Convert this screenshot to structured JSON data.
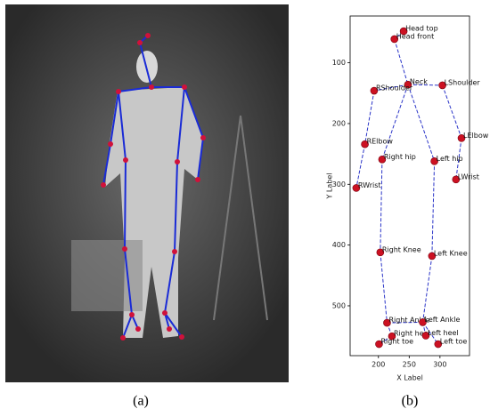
{
  "figure": {
    "caption_a": "(a)",
    "caption_b": "(b)"
  },
  "chart_data": {
    "type": "scatter",
    "x_label": "X Label",
    "y_label": "Y Label",
    "labels": [
      "Head top",
      "Head front",
      "Neck",
      "RShoulder",
      "LShoulder",
      "RElbow",
      "LElbow",
      "Right hip",
      "Left hip",
      "RWrist",
      "LWrist",
      "Right Knee",
      "Left Knee",
      "Right Ankle",
      "Left Ankle",
      "Right heel",
      "Left heel",
      "Right toe",
      "Left toe"
    ],
    "x": [
      241,
      226,
      248,
      193,
      304,
      178,
      335,
      206,
      291,
      164,
      326,
      203,
      287,
      214,
      272,
      222,
      277,
      201,
      297
    ],
    "y": [
      48,
      61,
      136,
      146,
      137,
      234,
      224,
      259,
      262,
      306,
      292,
      412,
      418,
      528,
      527,
      550,
      549,
      563,
      563
    ],
    "color": "#cc1122",
    "line_color": "#2b35c8",
    "xlim": [
      154,
      348
    ],
    "ylim": [
      582,
      23
    ],
    "xticks": [
      200,
      250,
      300
    ],
    "yticks": [
      100,
      200,
      300,
      400,
      500
    ]
  }
}
